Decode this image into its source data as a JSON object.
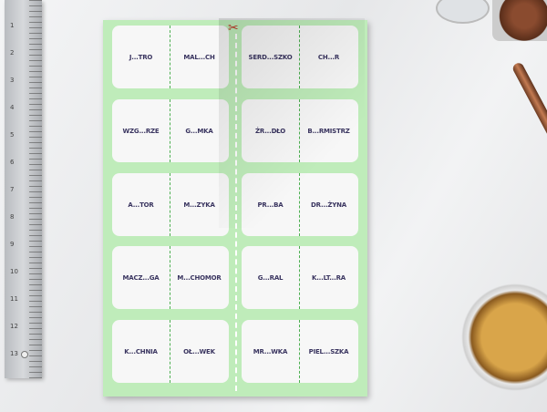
{
  "ruler_numbers": [
    "1",
    "2",
    "3",
    "4",
    "5",
    "6",
    "7",
    "8",
    "9",
    "10",
    "11",
    "12",
    "13"
  ],
  "colors": {
    "paper": "#bfecba",
    "card": "#f7f7f7",
    "text": "#3a3560",
    "split_line": "#4caf50",
    "scissors": "#c0392b"
  },
  "icons": {
    "cut": "scissors-icon"
  },
  "cards": [
    [
      "J...TRO",
      "MAL...CH"
    ],
    [
      "SERD...SZKO",
      "CH...R"
    ],
    [
      "WZG...RZE",
      "G...MKA"
    ],
    [
      "ŹR...DŁO",
      "B...RMISTRZ"
    ],
    [
      "A...TOR",
      "M...ZYKA"
    ],
    [
      "PR...BA",
      "DR...ŻYNA"
    ],
    [
      "MACZ...GA",
      "M...CHOMOR"
    ],
    [
      "G...RAL",
      "K...LT...RA"
    ],
    [
      "K...CHNIA",
      "OŁ...WEK"
    ],
    [
      "MR...WKA",
      "PIEL...SZKA"
    ]
  ]
}
